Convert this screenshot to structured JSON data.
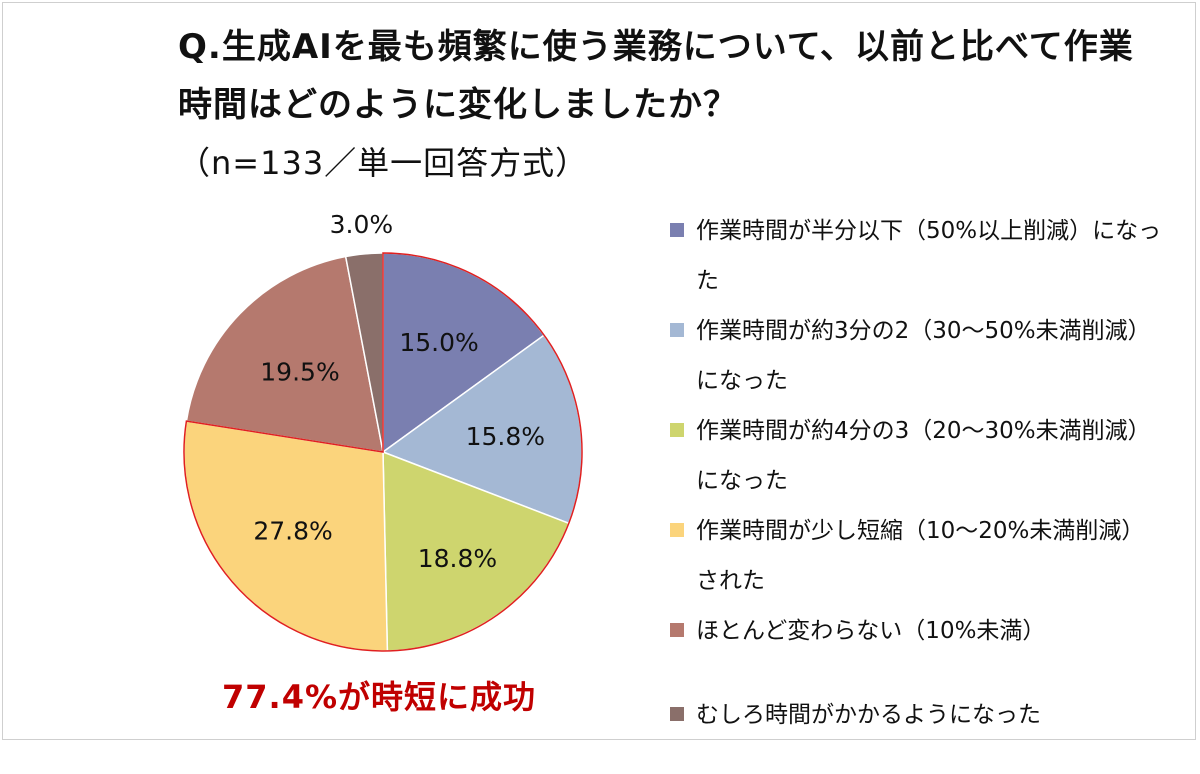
{
  "header": {
    "title": "Q.生成AIを最も頻繁に使う業務について、以前と比べて作業時間はどのように変化しましたか？",
    "subtitle": "（n=133／単一回答方式）"
  },
  "callout": "77.4%が時短に成功",
  "colors": {
    "series": [
      "#7a7fb0",
      "#a4b8d4",
      "#ced56e",
      "#fbd47c",
      "#b5796e",
      "#8a6f6a"
    ],
    "callout": "#c00000",
    "highlight_border": "#e02020"
  },
  "chart_data": {
    "type": "pie",
    "start_angle_deg": 0,
    "direction": "clockwise",
    "categories": [
      "作業時間が半分以下（50%以上削減）になった",
      "作業時間が約3分の2（30～50%未満削減）になった",
      "作業時間が約4分の3（20～30%未満削減）になった",
      "作業時間が少し短縮（10～20%未満削減）された",
      "ほとんど変わらない（10%未満）",
      "むしろ時間がかかるようになった"
    ],
    "values": [
      15.0,
      15.8,
      18.8,
      27.8,
      19.5,
      3.0
    ],
    "data_labels": [
      "15.0%",
      "15.8%",
      "18.8%",
      "27.8%",
      "19.5%",
      "3.0%"
    ],
    "legend_position": "right"
  }
}
